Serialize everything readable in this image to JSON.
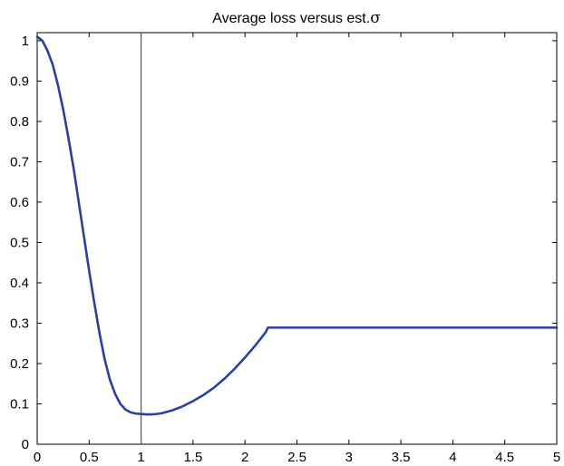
{
  "chart_data": {
    "type": "line",
    "title": "Average loss versus est.",
    "title_symbol": "σ",
    "xlabel": "",
    "ylabel": "",
    "xlim": [
      0,
      5
    ],
    "ylim": [
      0,
      1.02
    ],
    "xticks": [
      0,
      0.5,
      1,
      1.5,
      2,
      2.5,
      3,
      3.5,
      4,
      4.5,
      5
    ],
    "xtick_labels": [
      "0",
      "0.5",
      "1",
      "1.5",
      "2",
      "2.5",
      "3",
      "3.5",
      "4",
      "4.5",
      "5"
    ],
    "yticks": [
      0,
      0.1,
      0.2,
      0.3,
      0.4,
      0.5,
      0.6,
      0.7,
      0.8,
      0.9,
      1
    ],
    "ytick_labels": [
      "0",
      "0.1",
      "0.2",
      "0.3",
      "0.4",
      "0.5",
      "0.6",
      "0.7",
      "0.8",
      "0.9",
      "1"
    ],
    "grid": false,
    "series": [
      {
        "color": "#2b3f9e",
        "x": [
          0,
          0.05,
          0.1,
          0.15,
          0.2,
          0.25,
          0.3,
          0.35,
          0.4,
          0.45,
          0.5,
          0.55,
          0.6,
          0.65,
          0.7,
          0.75,
          0.8,
          0.85,
          0.9,
          0.95,
          1.0,
          1.05,
          1.1,
          1.15,
          1.2,
          1.3,
          1.4,
          1.5,
          1.6,
          1.7,
          1.8,
          1.9,
          2.0,
          2.1,
          2.2,
          2.22,
          2.5,
          3.0,
          3.5,
          4.0,
          4.5,
          5.0
        ],
        "y": [
          1.01,
          1.0,
          0.975,
          0.94,
          0.89,
          0.83,
          0.76,
          0.685,
          0.6,
          0.515,
          0.43,
          0.35,
          0.275,
          0.21,
          0.16,
          0.125,
          0.1,
          0.086,
          0.079,
          0.076,
          0.075,
          0.074,
          0.074,
          0.075,
          0.077,
          0.084,
          0.094,
          0.107,
          0.122,
          0.14,
          0.162,
          0.187,
          0.215,
          0.245,
          0.278,
          0.289,
          0.289,
          0.289,
          0.289,
          0.289,
          0.289,
          0.289
        ]
      }
    ],
    "reference_line": {
      "orientation": "vertical",
      "x": 1,
      "color": "#555555"
    }
  }
}
